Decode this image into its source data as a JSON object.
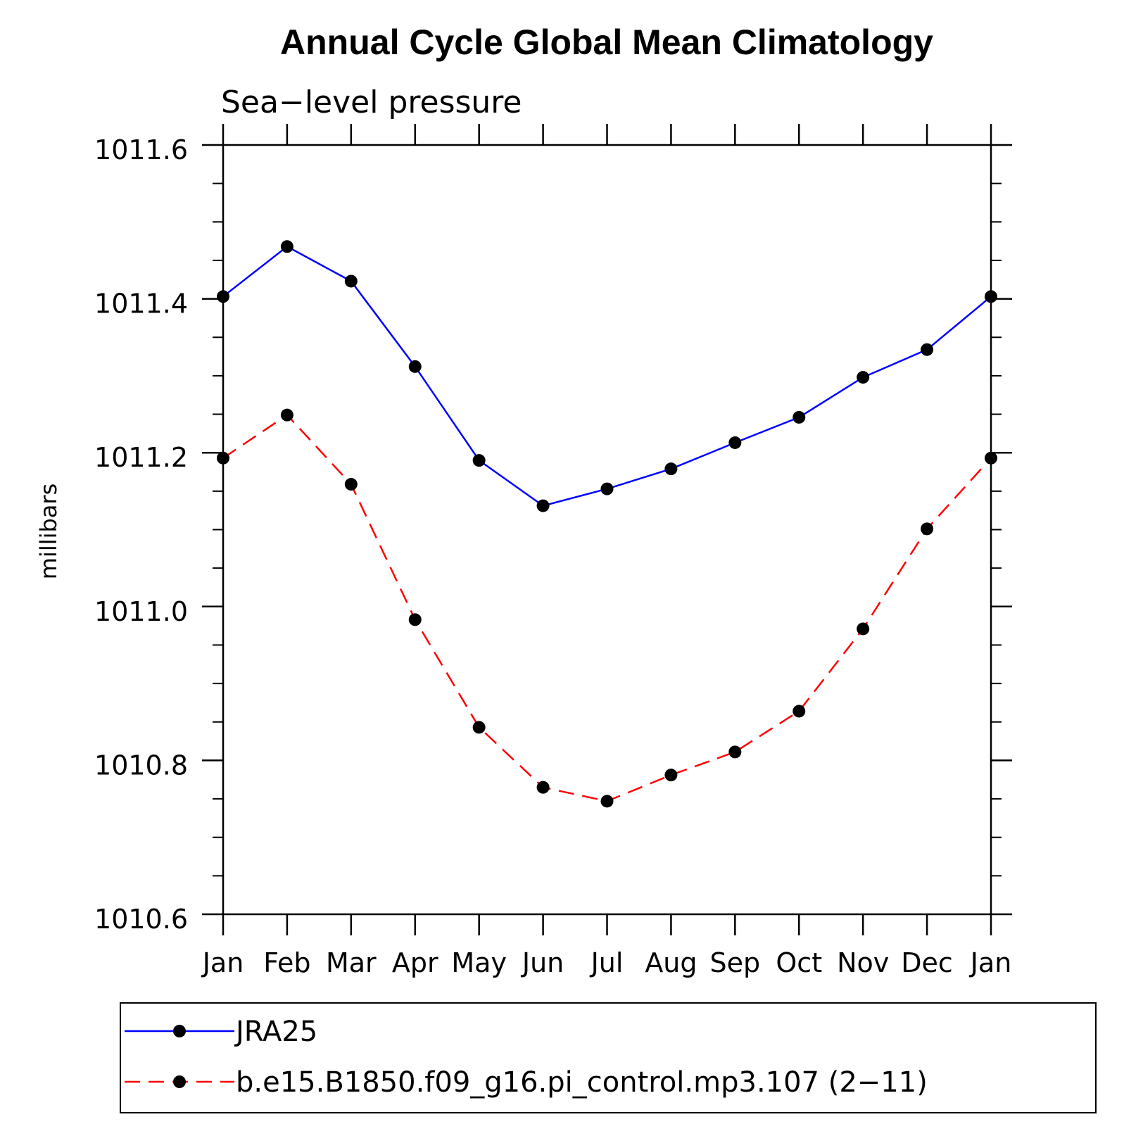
{
  "chart_data": {
    "type": "line",
    "title": "Annual Cycle Global Mean Climatology",
    "subtitle": "Sea−level pressure",
    "ylabel": "millibars",
    "xlabel": "",
    "categories": [
      "Jan",
      "Feb",
      "Mar",
      "Apr",
      "May",
      "Jun",
      "Jul",
      "Aug",
      "Sep",
      "Oct",
      "Nov",
      "Dec",
      "Jan"
    ],
    "ylim": [
      1010.6,
      1011.6
    ],
    "yticks": [
      "1010.6",
      "1010.8",
      "1011.0",
      "1011.2",
      "1011.4",
      "1011.6"
    ],
    "y_minor_step": 0.05,
    "grid": false,
    "legend_placement": "bottom",
    "series": [
      {
        "name": "JRA25",
        "color": "#0000ff",
        "dashed": false,
        "values": [
          1011.403,
          1011.468,
          1011.423,
          1011.312,
          1011.19,
          1011.131,
          1011.153,
          1011.179,
          1011.213,
          1011.246,
          1011.298,
          1011.334,
          1011.403
        ]
      },
      {
        "name": "b.e15.B1850.f09_g16.pi_control.mp3.107 (2−11)",
        "color": "#ff0000",
        "dashed": true,
        "values": [
          1011.193,
          1011.249,
          1011.159,
          1010.983,
          1010.843,
          1010.765,
          1010.747,
          1010.781,
          1010.811,
          1010.864,
          1010.971,
          1011.101,
          1011.193
        ]
      }
    ]
  }
}
